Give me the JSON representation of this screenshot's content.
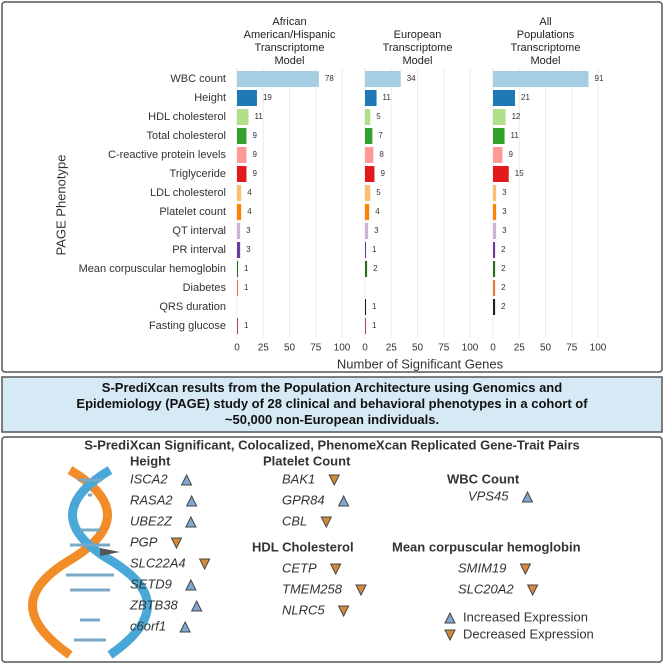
{
  "chart_data": {
    "type": "bar",
    "orientation": "horizontal",
    "categories": [
      "WBC count",
      "Height",
      "HDL cholesterol",
      "Total cholesterol",
      "C-reactive protein levels",
      "Triglyceride",
      "LDL cholesterol",
      "Platelet count",
      "QT interval",
      "PR interval",
      "Mean corpuscular hemoglobin",
      "Diabetes",
      "QRS duration",
      "Fasting glucose"
    ],
    "colors": [
      "#a6cee3",
      "#1f78b4",
      "#b2df8a",
      "#33a02c",
      "#fb9a99",
      "#e31a1c",
      "#fdbf6f",
      "#ff7f00",
      "#cab2d6",
      "#6a3d9a",
      "#2e6b1f",
      "#e07b39",
      "#222222",
      "#b5456b"
    ],
    "series": [
      {
        "name": "African American/Hispanic Transcriptome Model",
        "values": [
          78,
          19,
          11,
          9,
          9,
          9,
          4,
          4,
          3,
          3,
          1,
          1,
          null,
          1
        ]
      },
      {
        "name": "European Transcriptome Model",
        "values": [
          34,
          11,
          5,
          7,
          8,
          9,
          5,
          4,
          3,
          1,
          2,
          null,
          1,
          1
        ]
      },
      {
        "name": "All Populations Transcriptome Model",
        "values": [
          91,
          21,
          12,
          11,
          9,
          15,
          3,
          3,
          3,
          2,
          2,
          2,
          2,
          null
        ]
      }
    ],
    "xlim": [
      0,
      100
    ],
    "xticks": [
      0,
      25,
      50,
      75,
      100
    ],
    "grid": true,
    "xlabel": "Number of Significant Genes",
    "ylabel": "PAGE Phenotype"
  },
  "caption": {
    "lines": [
      "S-PrediXcan results from the Population Architecture using Genomics and",
      "Epidemiology (PAGE) study of 28 clinical and behavioral phenotypes in a cohort of",
      "~50,000 non-European individuals."
    ]
  },
  "gene_panel": {
    "title": "S-PrediXcan Significant, Colocalized, PhenomeXcan Replicated Gene-Trait Pairs",
    "groups": [
      {
        "name": "Height",
        "genes": [
          {
            "name": "ISCA2",
            "direction": "up"
          },
          {
            "name": "RASA2",
            "direction": "up"
          },
          {
            "name": "UBE2Z",
            "direction": "up"
          },
          {
            "name": "PGP",
            "direction": "down"
          },
          {
            "name": "SLC22A4",
            "direction": "down"
          },
          {
            "name": "SETD9",
            "direction": "up"
          },
          {
            "name": "ZBTB38",
            "direction": "up"
          },
          {
            "name": "c6orf1",
            "direction": "up"
          }
        ]
      },
      {
        "name": "Platelet Count",
        "genes": [
          {
            "name": "BAK1",
            "direction": "down"
          },
          {
            "name": "GPR84",
            "direction": "up"
          },
          {
            "name": "CBL",
            "direction": "down"
          }
        ]
      },
      {
        "name": "WBC Count",
        "genes": [
          {
            "name": "VPS45",
            "direction": "up"
          }
        ]
      },
      {
        "name": "HDL Cholesterol",
        "genes": [
          {
            "name": "CETP",
            "direction": "down"
          },
          {
            "name": "TMEM258",
            "direction": "down"
          },
          {
            "name": "NLRC5",
            "direction": "down"
          }
        ]
      },
      {
        "name": "Mean corpuscular hemoglobin",
        "genes": [
          {
            "name": "SMIM19",
            "direction": "down"
          },
          {
            "name": "SLC20A2",
            "direction": "down"
          }
        ]
      }
    ],
    "legend": [
      {
        "label": "Increased Expression",
        "direction": "up"
      },
      {
        "label": "Decreased Expression",
        "direction": "down"
      }
    ]
  }
}
